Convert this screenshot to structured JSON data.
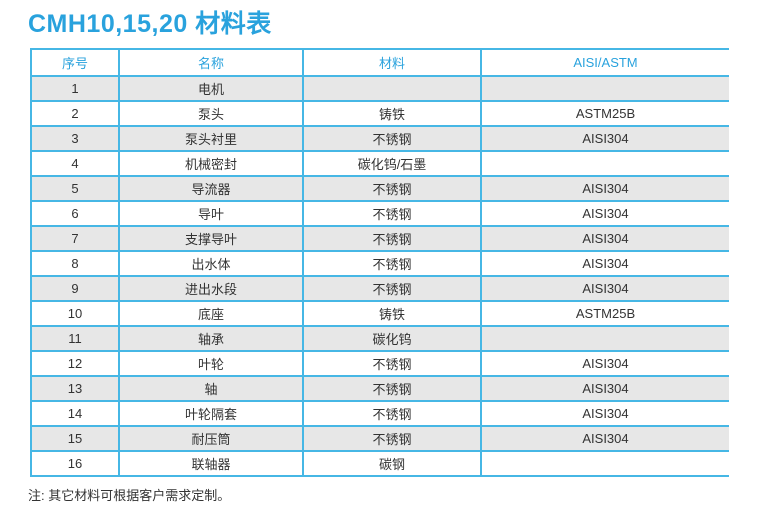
{
  "page": {
    "title": "CMH10,15,20 材料表",
    "note": "注: 其它材料可根据客户需求定制。"
  },
  "colors": {
    "accent_blue": "#29a2dd",
    "border_blue": "#46b7e5",
    "row_alt_gray": "#e7e7e7",
    "text_dark": "#333333"
  },
  "table": {
    "headers": [
      "序号",
      "名称",
      "材料",
      "AISI/ASTM"
    ],
    "rows": [
      [
        "1",
        "电机",
        "",
        ""
      ],
      [
        "2",
        "泵头",
        "铸铁",
        "ASTM25B"
      ],
      [
        "3",
        "泵头衬里",
        "不锈钢",
        "AISI304"
      ],
      [
        "4",
        "机械密封",
        "碳化钨/石墨",
        ""
      ],
      [
        "5",
        "导流器",
        "不锈钢",
        "AISI304"
      ],
      [
        "6",
        "导叶",
        "不锈钢",
        "AISI304"
      ],
      [
        "7",
        "支撑导叶",
        "不锈钢",
        "AISI304"
      ],
      [
        "8",
        "出水体",
        "不锈钢",
        "AISI304"
      ],
      [
        "9",
        "进出水段",
        "不锈钢",
        "AISI304"
      ],
      [
        "10",
        "底座",
        "铸铁",
        "ASTM25B"
      ],
      [
        "11",
        "轴承",
        "碳化钨",
        ""
      ],
      [
        "12",
        "叶轮",
        "不锈钢",
        "AISI304"
      ],
      [
        "13",
        "轴",
        "不锈钢",
        "AISI304"
      ],
      [
        "14",
        "叶轮隔套",
        "不锈钢",
        "AISI304"
      ],
      [
        "15",
        "耐压筒",
        "不锈钢",
        "AISI304"
      ],
      [
        "16",
        "联轴器",
        "碳钢",
        ""
      ]
    ]
  }
}
